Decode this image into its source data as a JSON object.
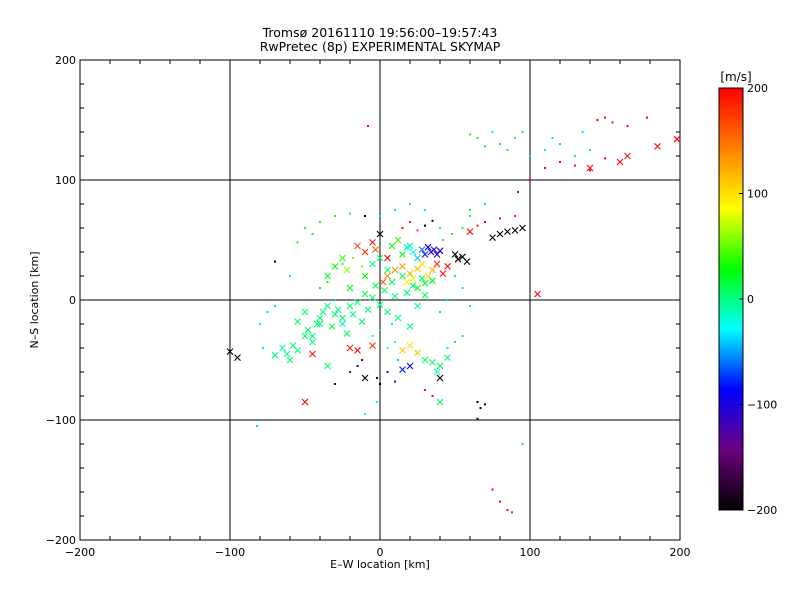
{
  "title": {
    "line1": "Tromsø 20161110 19:56:00–19:57:43",
    "line2": "RwPretec (8p) EXPERIMENTAL SKYMAP"
  },
  "chart_data": {
    "type": "scatter",
    "xlabel": "E–W location [km]",
    "ylabel": "N–S location [km]",
    "xlim": [
      -200,
      200
    ],
    "ylim": [
      -200,
      200
    ],
    "xticks": [
      -200,
      -100,
      0,
      100,
      200
    ],
    "yticks": [
      -200,
      -100,
      0,
      100,
      200
    ],
    "xtick_labels": [
      "−200",
      "−100",
      "0",
      "100",
      "200"
    ],
    "ytick_labels": [
      "−200",
      "−100",
      "0",
      "100",
      "200"
    ],
    "grid": [
      -100,
      0,
      100
    ],
    "colorbar": {
      "label": "[m/s]",
      "range": [
        -200,
        200
      ],
      "ticks": [
        200,
        100,
        0,
        -100,
        -200
      ],
      "tick_labels": [
        "200",
        "100",
        "0",
        "−100",
        "−200"
      ],
      "colors": [
        "#000000",
        "#6a0080",
        "#0000ff",
        "#00ffff",
        "#00ff00",
        "#ffff00",
        "#ff8000",
        "#ff0000"
      ]
    },
    "series": [
      {
        "name": "large-x",
        "marker": "x",
        "points": [
          [
            -100,
            -43,
            -200
          ],
          [
            -95,
            -48,
            -200
          ],
          [
            -70,
            -46,
            0
          ],
          [
            -65,
            -40,
            -10
          ],
          [
            -62,
            -45,
            0
          ],
          [
            -58,
            -38,
            5
          ],
          [
            -55,
            -42,
            0
          ],
          [
            -50,
            -30,
            10
          ],
          [
            -48,
            -25,
            10
          ],
          [
            -45,
            -35,
            0
          ],
          [
            -42,
            -20,
            5
          ],
          [
            -40,
            -15,
            5
          ],
          [
            -38,
            -10,
            0
          ],
          [
            -35,
            -5,
            0
          ],
          [
            -32,
            -22,
            10
          ],
          [
            -30,
            -12,
            5
          ],
          [
            -28,
            -8,
            0
          ],
          [
            -25,
            -15,
            5
          ],
          [
            -22,
            -28,
            10
          ],
          [
            -20,
            -5,
            0
          ],
          [
            -18,
            -12,
            5
          ],
          [
            -15,
            -2,
            0
          ],
          [
            -12,
            -18,
            5
          ],
          [
            -10,
            5,
            10
          ],
          [
            -8,
            -8,
            0
          ],
          [
            -5,
            2,
            5
          ],
          [
            -3,
            12,
            10
          ],
          [
            0,
            -4,
            0
          ],
          [
            3,
            8,
            5
          ],
          [
            5,
            -10,
            0
          ],
          [
            8,
            15,
            10
          ],
          [
            10,
            3,
            5
          ],
          [
            12,
            -15,
            0
          ],
          [
            15,
            20,
            10
          ],
          [
            18,
            6,
            5
          ],
          [
            20,
            -22,
            0
          ],
          [
            22,
            12,
            5
          ],
          [
            25,
            -5,
            0
          ],
          [
            28,
            18,
            10
          ],
          [
            30,
            4,
            5
          ],
          [
            -35,
            20,
            20
          ],
          [
            -30,
            28,
            30
          ],
          [
            -25,
            35,
            40
          ],
          [
            -22,
            25,
            60
          ],
          [
            -15,
            45,
            170
          ],
          [
            -10,
            40,
            180
          ],
          [
            -5,
            48,
            190
          ],
          [
            0,
            55,
            -200
          ],
          [
            -3,
            42,
            160
          ],
          [
            5,
            35,
            200
          ],
          [
            8,
            45,
            30
          ],
          [
            12,
            50,
            40
          ],
          [
            15,
            38,
            20
          ],
          [
            18,
            44,
            -20
          ],
          [
            22,
            40,
            -30
          ],
          [
            25,
            35,
            -40
          ],
          [
            28,
            42,
            -60
          ],
          [
            30,
            38,
            -80
          ],
          [
            32,
            44,
            -90
          ],
          [
            34,
            40,
            -100
          ],
          [
            36,
            42,
            -110
          ],
          [
            38,
            38,
            -100
          ],
          [
            40,
            41,
            -100
          ],
          [
            20,
            45,
            -10
          ],
          [
            10,
            25,
            140
          ],
          [
            15,
            28,
            130
          ],
          [
            20,
            22,
            120
          ],
          [
            25,
            26,
            110
          ],
          [
            28,
            30,
            100
          ],
          [
            32,
            20,
            110
          ],
          [
            35,
            25,
            120
          ],
          [
            38,
            30,
            180
          ],
          [
            42,
            22,
            190
          ],
          [
            45,
            28,
            200
          ],
          [
            18,
            15,
            90
          ],
          [
            22,
            18,
            80
          ],
          [
            50,
            38,
            -200
          ],
          [
            52,
            34,
            -200
          ],
          [
            55,
            36,
            -200
          ],
          [
            58,
            32,
            -200
          ],
          [
            75,
            52,
            -200
          ],
          [
            80,
            55,
            -200
          ],
          [
            85,
            57,
            -200
          ],
          [
            90,
            58,
            -200
          ],
          [
            95,
            60,
            -200
          ],
          [
            60,
            57,
            200
          ],
          [
            -40,
            -20,
            0
          ],
          [
            -50,
            -10,
            10
          ],
          [
            -55,
            -18,
            5
          ],
          [
            -45,
            -45,
            190
          ],
          [
            -20,
            -40,
            190
          ],
          [
            -15,
            -42,
            200
          ],
          [
            -5,
            -38,
            180
          ],
          [
            15,
            -42,
            110
          ],
          [
            20,
            -38,
            100
          ],
          [
            25,
            -44,
            110
          ],
          [
            30,
            -50,
            0
          ],
          [
            35,
            -52,
            5
          ],
          [
            40,
            -55,
            10
          ],
          [
            45,
            -48,
            0
          ],
          [
            38,
            -60,
            -10
          ],
          [
            40,
            -65,
            -200
          ],
          [
            20,
            -55,
            -90
          ],
          [
            15,
            -58,
            -80
          ],
          [
            -50,
            -85,
            200
          ],
          [
            105,
            5,
            200
          ],
          [
            140,
            110,
            200
          ],
          [
            160,
            115,
            200
          ],
          [
            165,
            120,
            190
          ],
          [
            185,
            128,
            200
          ],
          [
            198,
            134,
            200
          ],
          [
            -10,
            -65,
            -200
          ],
          [
            -35,
            -55,
            5
          ],
          [
            -60,
            -50,
            5
          ],
          [
            -45,
            -30,
            0
          ],
          [
            -25,
            -20,
            -10
          ],
          [
            -20,
            10,
            20
          ],
          [
            -10,
            20,
            30
          ],
          [
            -5,
            30,
            0
          ],
          [
            0,
            35,
            5
          ],
          [
            5,
            25,
            10
          ],
          [
            40,
            -85,
            10
          ],
          [
            25,
            10,
            20
          ],
          [
            30,
            14,
            15
          ],
          [
            35,
            16,
            20
          ],
          [
            5,
            20,
            140
          ],
          [
            2,
            15,
            160
          ]
        ]
      },
      {
        "name": "small-dot",
        "marker": "dot",
        "points": [
          [
            -8,
            145,
            200
          ],
          [
            60,
            138,
            20
          ],
          [
            65,
            135,
            15
          ],
          [
            70,
            128,
            20
          ],
          [
            75,
            140,
            10
          ],
          [
            80,
            130,
            15
          ],
          [
            85,
            125,
            20
          ],
          [
            90,
            135,
            5
          ],
          [
            95,
            140,
            15
          ],
          [
            100,
            120,
            10
          ],
          [
            110,
            125,
            5
          ],
          [
            115,
            135,
            0
          ],
          [
            120,
            130,
            5
          ],
          [
            130,
            120,
            10
          ],
          [
            135,
            140,
            5
          ],
          [
            140,
            125,
            10
          ],
          [
            145,
            150,
            200
          ],
          [
            150,
            152,
            200
          ],
          [
            155,
            148,
            190
          ],
          [
            165,
            145,
            200
          ],
          [
            178,
            152,
            200
          ],
          [
            110,
            110,
            200
          ],
          [
            120,
            115,
            200
          ],
          [
            130,
            112,
            190
          ],
          [
            140,
            108,
            200
          ],
          [
            150,
            118,
            200
          ],
          [
            100,
            100,
            200
          ],
          [
            92,
            90,
            200
          ],
          [
            70,
            80,
            10
          ],
          [
            60,
            75,
            20
          ],
          [
            60,
            70,
            5
          ],
          [
            65,
            62,
            190
          ],
          [
            70,
            65,
            200
          ],
          [
            80,
            68,
            200
          ],
          [
            90,
            70,
            180
          ],
          [
            55,
            60,
            15
          ],
          [
            48,
            55,
            10
          ],
          [
            42,
            50,
            0
          ],
          [
            -10,
            70,
            -200
          ],
          [
            -40,
            65,
            15
          ],
          [
            -50,
            60,
            10
          ],
          [
            -30,
            70,
            20
          ],
          [
            -20,
            72,
            15
          ],
          [
            20,
            80,
            0
          ],
          [
            10,
            75,
            10
          ],
          [
            0,
            70,
            -10
          ],
          [
            30,
            75,
            5
          ],
          [
            -45,
            55,
            30
          ],
          [
            -55,
            48,
            25
          ],
          [
            -70,
            32,
            -200
          ],
          [
            -60,
            20,
            10
          ],
          [
            -70,
            -5,
            15
          ],
          [
            -75,
            -10,
            10
          ],
          [
            -80,
            -20,
            5
          ],
          [
            -78,
            -40,
            5
          ],
          [
            -82,
            -105,
            10
          ],
          [
            -30,
            -70,
            -180
          ],
          [
            0,
            -70,
            -200
          ],
          [
            -2,
            -65,
            -200
          ],
          [
            5,
            -60,
            -150
          ],
          [
            10,
            -68,
            -120
          ],
          [
            30,
            -75,
            190
          ],
          [
            35,
            -80,
            200
          ],
          [
            -10,
            -95,
            -20
          ],
          [
            -2,
            -85,
            -10
          ],
          [
            65,
            -85,
            -200
          ],
          [
            67,
            -90,
            -200
          ],
          [
            70,
            -87,
            -200
          ],
          [
            65,
            -99,
            -200
          ],
          [
            95,
            -120,
            10
          ],
          [
            75,
            -158,
            200
          ],
          [
            80,
            -168,
            200
          ],
          [
            85,
            -175,
            200
          ],
          [
            88,
            -177,
            200
          ],
          [
            50,
            20,
            10
          ],
          [
            55,
            10,
            5
          ],
          [
            60,
            -5,
            0
          ],
          [
            45,
            0,
            10
          ],
          [
            40,
            -10,
            5
          ],
          [
            -40,
            10,
            20
          ],
          [
            -35,
            15,
            30
          ],
          [
            -30,
            0,
            10
          ],
          [
            -20,
            -60,
            -150
          ],
          [
            -15,
            -55,
            -180
          ],
          [
            -12,
            -50,
            -160
          ],
          [
            5,
            -40,
            -30
          ],
          [
            10,
            -35,
            -20
          ],
          [
            12,
            -50,
            -40
          ],
          [
            -5,
            -30,
            -20
          ],
          [
            0,
            -25,
            0
          ],
          [
            8,
            -20,
            10
          ],
          [
            45,
            -40,
            5
          ],
          [
            50,
            -35,
            10
          ],
          [
            55,
            -30,
            15
          ],
          [
            -25,
            30,
            40
          ],
          [
            -18,
            35,
            60
          ],
          [
            -12,
            28,
            50
          ],
          [
            15,
            60,
            200
          ],
          [
            20,
            65,
            190
          ],
          [
            25,
            58,
            180
          ],
          [
            30,
            62,
            -200
          ],
          [
            35,
            66,
            -200
          ],
          [
            40,
            60,
            0
          ]
        ]
      }
    ]
  }
}
